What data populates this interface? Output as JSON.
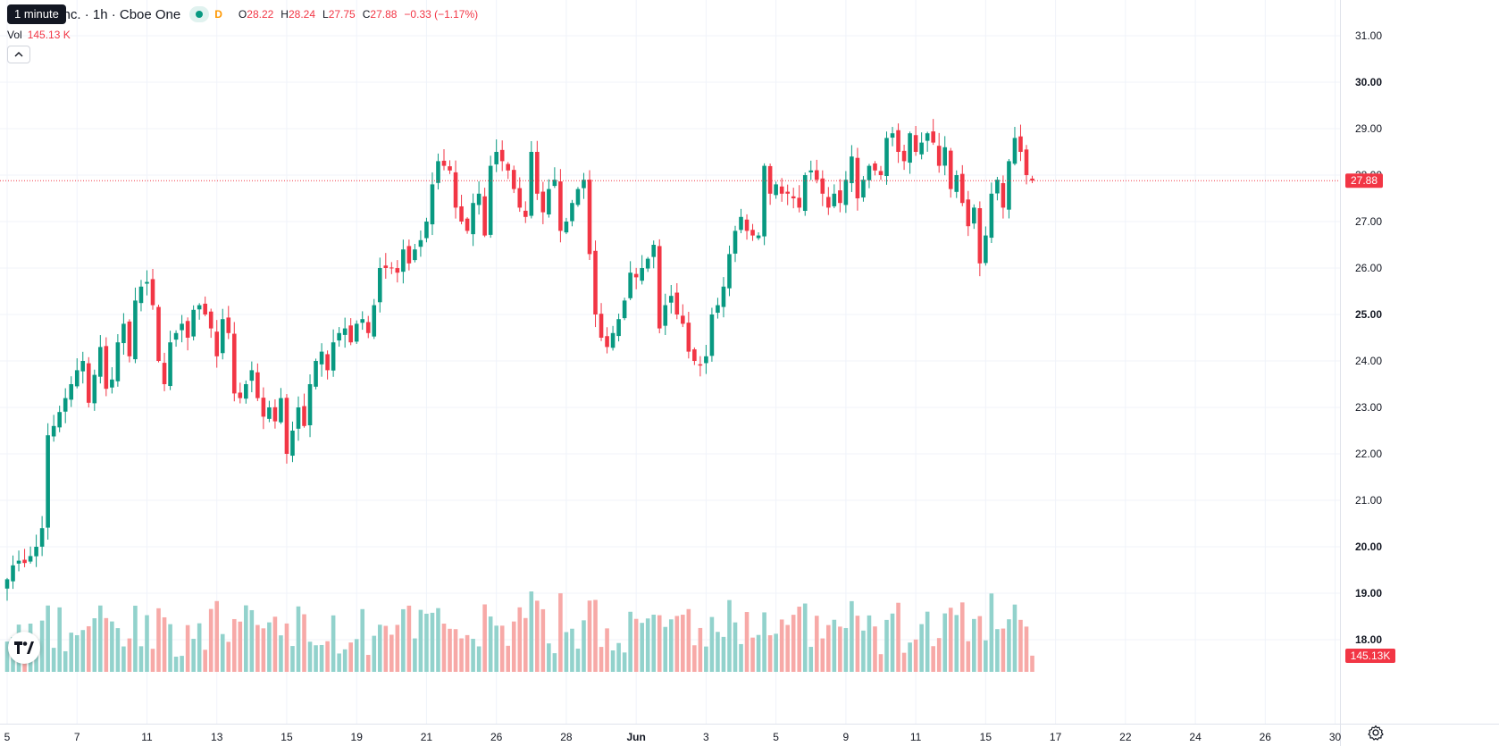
{
  "legend": {
    "title": "atforms, Inc. · 1h · Cboe One",
    "d_label": "D",
    "o_key": "O",
    "o_val": "28.22",
    "h_key": "H",
    "h_val": "28.24",
    "l_key": "L",
    "l_val": "27.75",
    "c_key": "C",
    "c_val": "27.88",
    "change": "−0.33 (−1.17%)"
  },
  "tooltip": "1 minute",
  "volume": {
    "label": "Vol",
    "value": "145.13 K",
    "axis_label": "145.13K"
  },
  "collapse_icon": "chevron-up-icon",
  "logo_text": "TV",
  "settings_icon": "gear-icon",
  "colors": {
    "up": "#089981",
    "down": "#f23645",
    "vol_up": "#92d2cc",
    "vol_down": "#f7a9a7"
  },
  "chart_data": {
    "type": "candlestick",
    "interval": "1h",
    "y_ticks": [
      "18.00",
      "19.00",
      "20.00",
      "21.00",
      "22.00",
      "23.00",
      "24.00",
      "25.00",
      "26.00",
      "27.00",
      "28.00",
      "29.00",
      "30.00",
      "31.00"
    ],
    "bold_ticks": [
      "18.00",
      "19.00",
      "20.00",
      "25.00",
      "30.00"
    ],
    "ylim": [
      17.4,
      31.5
    ],
    "x_labels": [
      {
        "label": "5",
        "t": 0
      },
      {
        "label": "7",
        "t": 12
      },
      {
        "label": "11",
        "t": 24
      },
      {
        "label": "13",
        "t": 36
      },
      {
        "label": "15",
        "t": 48
      },
      {
        "label": "19",
        "t": 60
      },
      {
        "label": "21",
        "t": 72
      },
      {
        "label": "26",
        "t": 84
      },
      {
        "label": "28",
        "t": 96
      },
      {
        "label": "Jun",
        "t": 108,
        "bold": true
      },
      {
        "label": "3",
        "t": 120
      },
      {
        "label": "5",
        "t": 132
      },
      {
        "label": "9",
        "t": 144
      },
      {
        "label": "11",
        "t": 156
      },
      {
        "label": "15",
        "t": 168
      },
      {
        "label": "17",
        "t": 180
      },
      {
        "label": "22",
        "t": 192
      },
      {
        "label": "24",
        "t": 204
      },
      {
        "label": "26",
        "t": 216
      },
      {
        "label": "30",
        "t": 228
      }
    ],
    "last_price": 27.88,
    "last_price_label": "27.88",
    "anchors": [
      [
        0,
        19.3
      ],
      [
        1,
        19.6
      ],
      [
        2,
        19.7
      ],
      [
        3,
        19.65
      ],
      [
        4,
        19.8
      ],
      [
        5,
        20.0
      ],
      [
        6,
        20.4
      ],
      [
        7,
        22.4
      ],
      [
        8,
        22.6
      ],
      [
        9,
        22.9
      ],
      [
        10,
        23.2
      ],
      [
        11,
        23.5
      ],
      [
        12,
        23.8
      ],
      [
        13,
        24.0
      ],
      [
        14,
        23.1
      ],
      [
        15,
        23.7
      ],
      [
        16,
        24.3
      ],
      [
        17,
        23.4
      ],
      [
        18,
        23.6
      ],
      [
        19,
        24.4
      ],
      [
        20,
        24.8
      ],
      [
        21,
        24.1
      ],
      [
        22,
        25.3
      ],
      [
        23,
        25.6
      ],
      [
        24,
        25.7
      ],
      [
        25,
        25.2
      ],
      [
        26,
        24.0
      ],
      [
        27,
        23.5
      ],
      [
        28,
        24.4
      ],
      [
        29,
        24.6
      ],
      [
        30,
        24.8
      ],
      [
        31,
        24.5
      ],
      [
        32,
        25.1
      ],
      [
        33,
        25.2
      ],
      [
        34,
        25.0
      ],
      [
        35,
        24.7
      ],
      [
        36,
        24.1
      ],
      [
        37,
        24.9
      ],
      [
        38,
        24.6
      ],
      [
        39,
        23.3
      ],
      [
        40,
        23.2
      ],
      [
        41,
        23.5
      ],
      [
        42,
        23.8
      ],
      [
        43,
        23.2
      ],
      [
        44,
        22.8
      ],
      [
        45,
        23.0
      ],
      [
        46,
        22.7
      ],
      [
        47,
        23.2
      ],
      [
        48,
        22.0
      ],
      [
        49,
        22.5
      ],
      [
        50,
        23.0
      ],
      [
        51,
        22.6
      ],
      [
        52,
        23.5
      ],
      [
        53,
        24.0
      ],
      [
        54,
        24.2
      ],
      [
        55,
        23.8
      ],
      [
        56,
        24.4
      ],
      [
        57,
        24.6
      ],
      [
        58,
        24.7
      ],
      [
        59,
        24.4
      ],
      [
        60,
        24.8
      ],
      [
        61,
        24.9
      ],
      [
        62,
        24.6
      ],
      [
        63,
        25.2
      ],
      [
        64,
        26.0
      ],
      [
        65,
        26.0
      ],
      [
        66,
        26.0
      ],
      [
        67,
        25.9
      ],
      [
        68,
        26.4
      ],
      [
        69,
        26.1
      ],
      [
        70,
        26.4
      ],
      [
        71,
        26.6
      ],
      [
        72,
        27.0
      ],
      [
        73,
        27.8
      ],
      [
        74,
        28.3
      ],
      [
        75,
        28.2
      ],
      [
        76,
        28.1
      ],
      [
        77,
        27.3
      ],
      [
        78,
        27.0
      ],
      [
        79,
        26.8
      ],
      [
        80,
        27.4
      ],
      [
        81,
        27.6
      ],
      [
        82,
        26.7
      ],
      [
        83,
        28.2
      ],
      [
        84,
        28.5
      ],
      [
        85,
        28.3
      ],
      [
        86,
        28.1
      ],
      [
        87,
        27.7
      ],
      [
        88,
        27.3
      ],
      [
        89,
        27.1
      ],
      [
        90,
        28.5
      ],
      [
        91,
        27.6
      ],
      [
        92,
        27.2
      ],
      [
        93,
        27.7
      ],
      [
        94,
        27.9
      ],
      [
        95,
        26.8
      ],
      [
        96,
        27.0
      ],
      [
        97,
        27.4
      ],
      [
        98,
        27.7
      ],
      [
        99,
        27.9
      ],
      [
        100,
        26.3
      ],
      [
        101,
        25.0
      ],
      [
        102,
        24.5
      ],
      [
        103,
        24.3
      ],
      [
        104,
        24.6
      ],
      [
        105,
        24.9
      ],
      [
        106,
        25.3
      ],
      [
        107,
        25.9
      ],
      [
        108,
        25.8
      ],
      [
        109,
        26.0
      ],
      [
        110,
        26.2
      ],
      [
        111,
        26.5
      ],
      [
        112,
        24.7
      ],
      [
        113,
        25.2
      ],
      [
        114,
        25.4
      ],
      [
        115,
        25.0
      ],
      [
        116,
        24.8
      ],
      [
        117,
        24.2
      ],
      [
        118,
        24.0
      ],
      [
        119,
        23.9
      ],
      [
        120,
        24.1
      ],
      [
        121,
        25.0
      ],
      [
        122,
        25.2
      ],
      [
        123,
        25.6
      ],
      [
        124,
        26.3
      ],
      [
        125,
        26.8
      ],
      [
        126,
        27.1
      ],
      [
        127,
        26.8
      ],
      [
        128,
        26.7
      ],
      [
        129,
        26.7
      ],
      [
        130,
        28.2
      ],
      [
        131,
        27.6
      ],
      [
        132,
        27.8
      ],
      [
        133,
        27.6
      ],
      [
        134,
        27.6
      ],
      [
        135,
        27.5
      ],
      [
        136,
        27.3
      ],
      [
        137,
        28.0
      ],
      [
        138,
        28.1
      ],
      [
        139,
        27.9
      ],
      [
        140,
        27.6
      ],
      [
        141,
        27.3
      ],
      [
        142,
        27.6
      ],
      [
        143,
        27.4
      ],
      [
        144,
        27.9
      ],
      [
        145,
        28.4
      ],
      [
        146,
        27.5
      ],
      [
        147,
        27.9
      ],
      [
        148,
        28.2
      ],
      [
        149,
        28.1
      ],
      [
        150,
        28.0
      ],
      [
        151,
        28.8
      ],
      [
        152,
        28.9
      ],
      [
        153,
        28.5
      ],
      [
        154,
        28.3
      ],
      [
        155,
        28.9
      ],
      [
        156,
        28.5
      ],
      [
        157,
        28.7
      ],
      [
        158,
        28.9
      ],
      [
        159,
        28.7
      ],
      [
        160,
        28.2
      ],
      [
        161,
        28.6
      ],
      [
        162,
        27.7
      ],
      [
        163,
        28.0
      ],
      [
        164,
        27.4
      ],
      [
        165,
        26.9
      ],
      [
        166,
        27.3
      ],
      [
        167,
        26.1
      ],
      [
        168,
        26.7
      ],
      [
        169,
        27.6
      ],
      [
        170,
        27.9
      ],
      [
        171,
        27.3
      ],
      [
        172,
        28.3
      ],
      [
        173,
        28.8
      ],
      [
        174,
        28.5
      ],
      [
        175,
        28.0
      ],
      [
        176,
        27.88
      ]
    ],
    "volume_axis_max": 145000
  }
}
